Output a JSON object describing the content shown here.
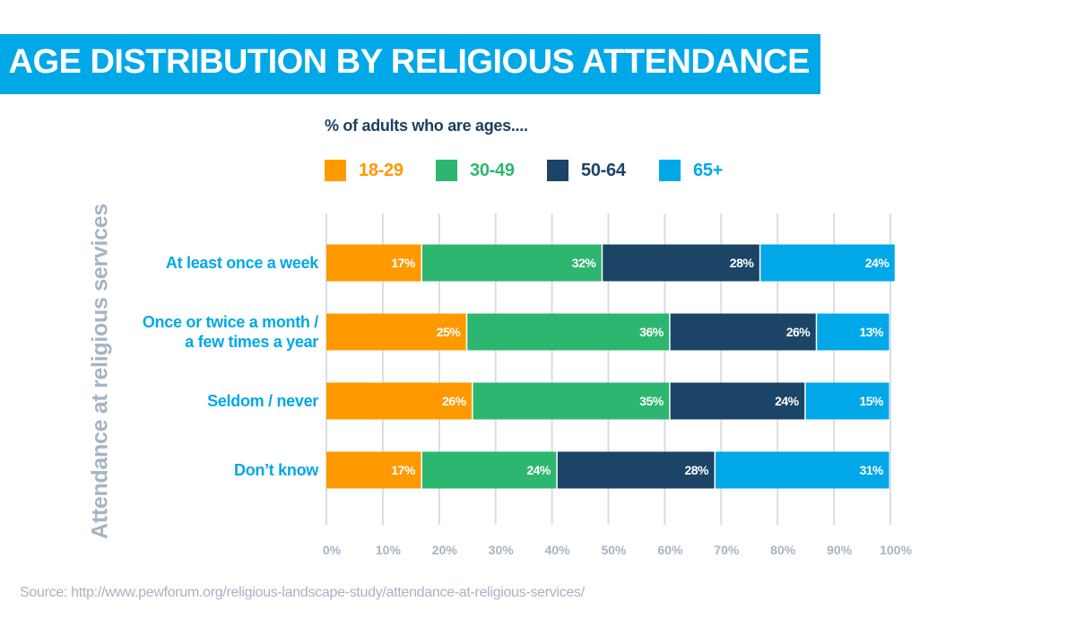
{
  "header": {
    "title": "AGE DISTRIBUTION BY RELIGIOUS ATTENDANCE"
  },
  "subtitle": "% of adults who are ages....",
  "y_axis_title": "Attendance at religious services",
  "source": "Source: http://www.pewforum.org/religious-landscape-study/attendance-at-religious-services/",
  "colors": {
    "title_bar": "#00a8e8",
    "text_dark": "#1d3f5e",
    "category_text": "#00a8e8",
    "muted": "#a5b4c4",
    "grid": "#d9dde2"
  },
  "chart_data": {
    "type": "bar",
    "orientation": "horizontal",
    "stacked": true,
    "categories": [
      [
        "At least once a week"
      ],
      [
        "Once or twice a month /",
        "a few times a year"
      ],
      [
        "Seldom / never"
      ],
      [
        "Don’t know"
      ]
    ],
    "series": [
      {
        "name": "18-29",
        "color": "#ff9900",
        "values": [
          17,
          25,
          26,
          17
        ]
      },
      {
        "name": "30-49",
        "color": "#2db670",
        "values": [
          32,
          36,
          35,
          24
        ]
      },
      {
        "name": "50-64",
        "color": "#1b4467",
        "values": [
          28,
          26,
          24,
          28
        ]
      },
      {
        "name": "65+",
        "color": "#00a8e8",
        "values": [
          24,
          13,
          15,
          31
        ]
      }
    ],
    "value_suffix": "%",
    "xlim": [
      0,
      100
    ],
    "x_ticks": [
      "0%",
      "10%",
      "20%",
      "30%",
      "40%",
      "50%",
      "60%",
      "70%",
      "80%",
      "90%",
      "100%"
    ],
    "grid": true,
    "legend_position": "top"
  }
}
